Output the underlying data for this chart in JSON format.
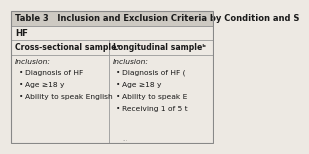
{
  "title": "Table 3   Inclusion and Exclusion Criteria by Condition and S",
  "title_fontsize": 6.0,
  "background_color": "#ede9e3",
  "border_color": "#888888",
  "section_header": "HF",
  "col1_header": "Cross-sectional sampleᵃ",
  "col2_header": "Longitudinal sampleᵇ",
  "col1_label": "Inclusion:",
  "col2_label": "Inclusion:",
  "col1_items": [
    "Diagnosis of HF",
    "Age ≥18 y",
    "Ability to speak English"
  ],
  "col2_items": [
    "Diagnosis of HF (",
    "Age ≥18 y",
    "Ability to speak E",
    "Receiving 1 of 5 t"
  ],
  "font_color": "#1a1a1a",
  "divider_color": "#999999",
  "title_bg": "#cdc9c2",
  "body_bg": "#ede9e3",
  "col_split": 0.49
}
